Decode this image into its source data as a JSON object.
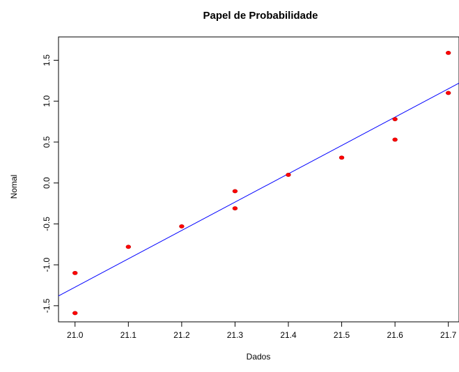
{
  "chart_data": {
    "type": "scatter",
    "title": "Papel de Probabilidade",
    "xlabel": "Dados",
    "ylabel": "Nomal",
    "xlim": [
      20.969,
      21.72
    ],
    "ylim": [
      -1.697,
      1.785
    ],
    "x_ticks": [
      21.0,
      21.1,
      21.2,
      21.3,
      21.4,
      21.5,
      21.6,
      21.7
    ],
    "x_tick_labels": [
      "21.0",
      "21.1",
      "21.2",
      "21.3",
      "21.4",
      "21.5",
      "21.6",
      "21.7"
    ],
    "y_ticks": [
      -1.5,
      -1.0,
      -0.5,
      0.0,
      0.5,
      1.0,
      1.5
    ],
    "y_tick_labels": [
      "-1.5",
      "-1.0",
      "-0.5",
      "0.0",
      "0.5",
      "1.0",
      "1.5"
    ],
    "grid": false,
    "points": {
      "color": "#ff0000",
      "x": [
        21.0,
        21.0,
        21.1,
        21.2,
        21.3,
        21.3,
        21.4,
        21.5,
        21.6,
        21.6,
        21.7,
        21.7
      ],
      "y": [
        -1.59,
        -1.1,
        -0.78,
        -0.53,
        -0.31,
        -0.1,
        0.1,
        0.31,
        0.53,
        0.78,
        1.1,
        1.59
      ]
    },
    "reference_line": {
      "color": "#0000ff",
      "x": [
        20.969,
        21.72
      ],
      "y": [
        -1.38,
        1.22
      ]
    }
  }
}
